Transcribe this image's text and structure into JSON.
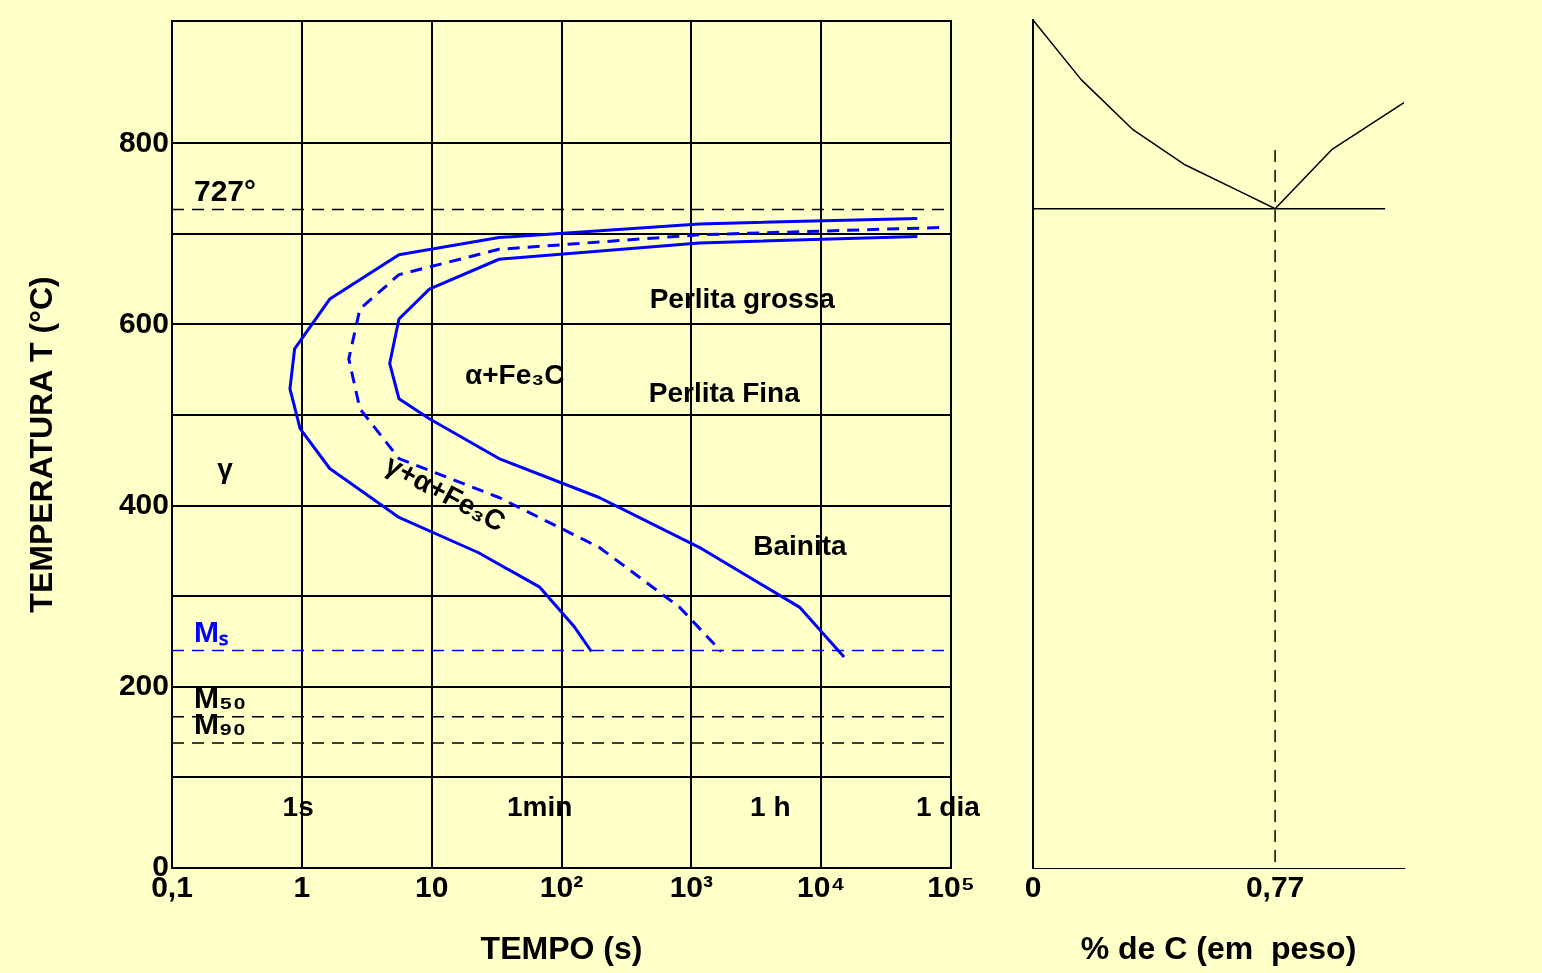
{
  "chart_data": [
    {
      "type": "line",
      "xlabel": "TEMPO (s)",
      "ylabel": "TEMPERATURA T (°C)",
      "log": "x",
      "xlim": [
        0.1,
        100000
      ],
      "xticks": [
        {
          "value": 0.1,
          "label": "0,1"
        },
        1,
        10,
        {
          "value": 100,
          "label": "10²"
        },
        {
          "value": 1000,
          "label": "10³"
        },
        {
          "value": 10000,
          "label": "10⁴"
        },
        {
          "value": 100000,
          "label": "10⁵"
        }
      ],
      "ylim": [
        0,
        935
      ],
      "yticks": [
        0,
        {
          "value": 100,
          "label": null
        },
        200,
        {
          "value": 300,
          "label": null
        },
        400,
        {
          "value": 500,
          "label": null
        },
        600,
        {
          "value": 700,
          "label": null
        },
        800
      ],
      "grid": true,
      "legend": false,
      "marker": "none",
      "series": [
        {
          "color": "#0000ff",
          "x": [
            55000,
            1150,
            33,
            5.6,
            1.64,
            0.88,
            0.81,
            0.97,
            1.64,
            5.6,
            23,
            68,
            126,
            170
          ],
          "values": [
            717,
            711,
            696,
            677,
            628,
            573,
            529,
            485,
            441,
            387,
            348,
            310,
            266,
            239
          ]
        },
        {
          "color": "#0000ff",
          "line_style": "dashed",
          "x": [
            81000,
            1150,
            33,
            5.6,
            2.8,
            2.3,
            2.8,
            5.6,
            33,
            195,
            810,
            1700
          ],
          "values": [
            707,
            699,
            683,
            655,
            617,
            562,
            507,
            452,
            409,
            354,
            288,
            239
          ]
        },
        {
          "color": "#0000ff",
          "x": [
            55000,
            1150,
            33,
            9.6,
            5.6,
            4.75,
            5.6,
            9.6,
            33,
            195,
            1150,
            6800,
            15000
          ],
          "values": [
            697,
            690,
            672,
            639,
            606,
            557,
            518,
            496,
            452,
            409,
            354,
            288,
            233
          ]
        }
      ],
      "ref_lines": [
        {
          "axis": "y",
          "value": 727,
          "label": "727°",
          "color": "#000000",
          "line_style": "dashed"
        },
        {
          "axis": "y",
          "value": 240,
          "label": "Mₛ",
          "color": "#0000ff",
          "line_style": "dashed"
        },
        {
          "axis": "y",
          "value": 167,
          "label": "M₅₀",
          "color": "#000000",
          "line_style": "dashed"
        },
        {
          "axis": "y",
          "value": 138,
          "label": "M₉₀",
          "color": "#000000",
          "line_style": "dashed"
        }
      ],
      "annotations": [
        "Perlita grossa",
        "Perlita Fina",
        "Bainita",
        "α+Fe₃C",
        "γ",
        "γ+α+Fe₃C",
        "1s",
        "1min",
        "1 h",
        "1 dia"
      ]
    },
    {
      "type": "line",
      "xlabel": "% de C (em  peso)",
      "xlim": [
        0,
        1.18
      ],
      "xticks": [
        0,
        {
          "value": 0.77,
          "label": "0,77"
        }
      ],
      "ylim": [
        0,
        935
      ],
      "tick_labels": "x",
      "grid": false,
      "legend": false,
      "marker": "none",
      "series": [
        {
          "color": "#000000",
          "x": [
            0,
            0.154,
            0.318,
            0.48,
            0.646,
            0.77
          ],
          "values": [
            935,
            869,
            814,
            776,
            748,
            727
          ]
        },
        {
          "color": "#000000",
          "x": [
            0.77,
            0.95,
            1.18
          ],
          "values": [
            727,
            792,
            844
          ]
        },
        {
          "color": "#000000",
          "x": [
            0,
            1.12
          ],
          "values": [
            727,
            727
          ]
        }
      ],
      "ref_lines": [
        {
          "axis": "x",
          "value": 0.77,
          "color": "#000000",
          "line_style": "dashed"
        }
      ]
    }
  ]
}
